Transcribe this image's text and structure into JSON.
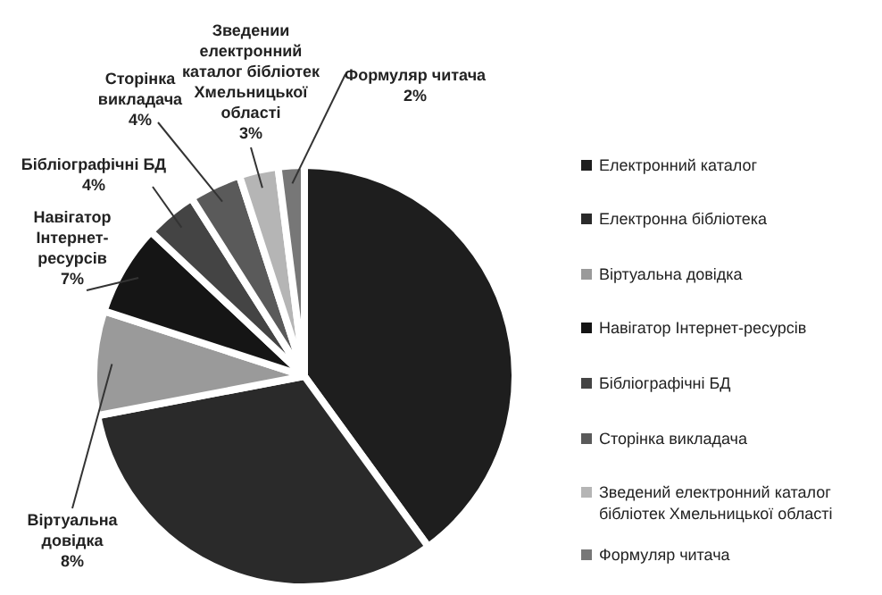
{
  "chart_data": {
    "type": "pie",
    "categories": [
      "Електронний каталог",
      "Електронна бібліотека",
      "Віртуальна довідка",
      "Навігатор Інтернет-ресурсів",
      "Бібліографічні БД",
      "Сторінка викладача",
      "Зведений електронний каталог бібліотек Хмельницької області",
      "Формуляр читача"
    ],
    "values": [
      40,
      32,
      8,
      7,
      4,
      4,
      3,
      2
    ],
    "colors": [
      "#1e1e1e",
      "#2a2a2a",
      "#9a9a9a",
      "#151515",
      "#444444",
      "#5a5a5a",
      "#b5b5b5",
      "#777777"
    ],
    "value_labels": [
      null,
      null,
      "Віртуальна\nдовідка\n8%",
      "Навігатор\nІнтернет-\nресурсів\n7%",
      "Бібліографічні БД\n4%",
      "Сторінка\nвикладача\n4%",
      "Зведении\nелектронний\nкаталог бібліотек\nХмельницької\nобласті\n3%",
      "Формуляр читача\n2%"
    ],
    "legend": "right"
  }
}
